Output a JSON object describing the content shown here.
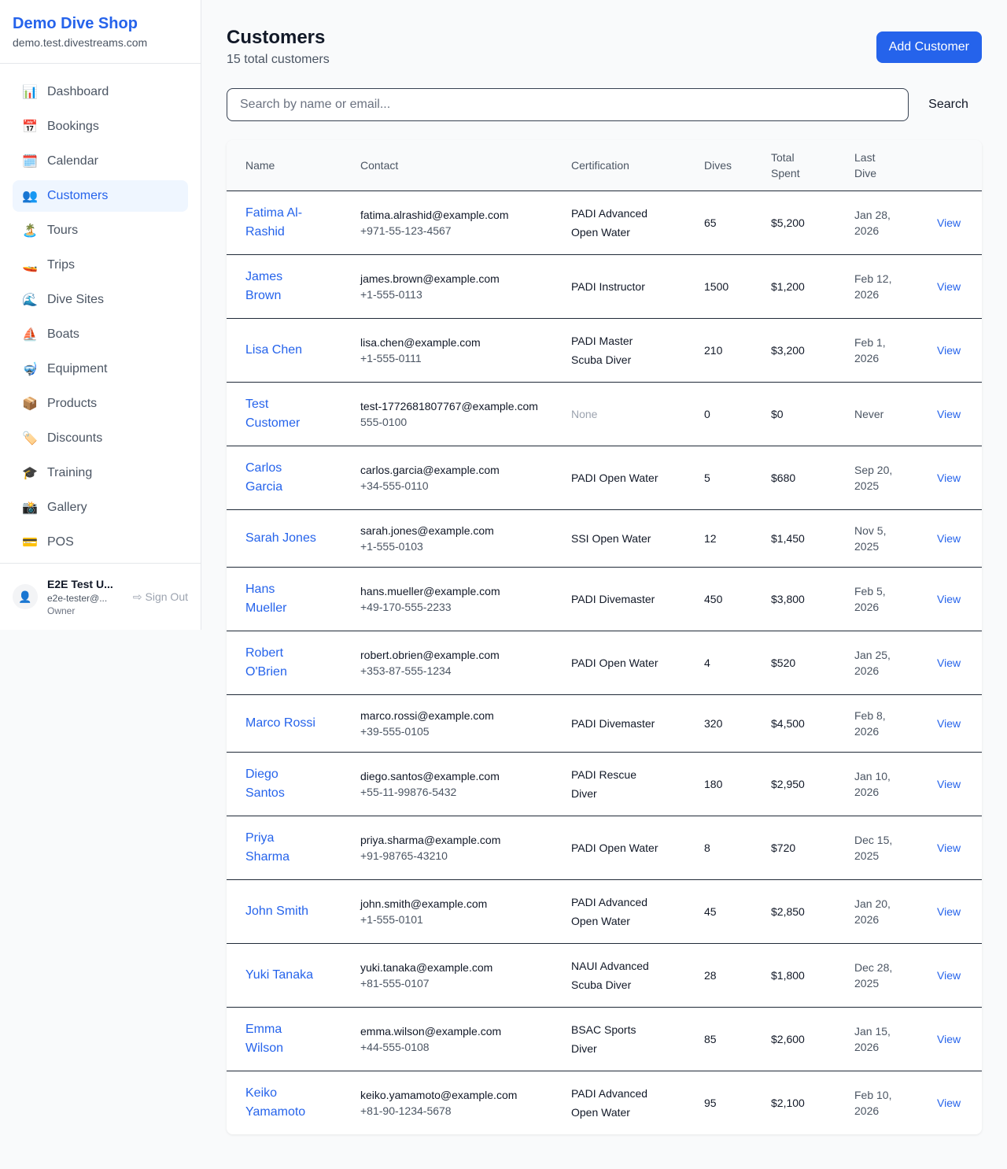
{
  "sidebar": {
    "brand": "Demo Dive Shop",
    "domain": "demo.test.divestreams.com",
    "items": [
      {
        "label": "Dashboard",
        "icon": "📊",
        "name": "dashboard"
      },
      {
        "label": "Bookings",
        "icon": "📅",
        "name": "bookings"
      },
      {
        "label": "Calendar",
        "icon": "🗓️",
        "name": "calendar"
      },
      {
        "label": "Customers",
        "icon": "👥",
        "name": "customers",
        "active": true
      },
      {
        "label": "Tours",
        "icon": "🏝️",
        "name": "tours"
      },
      {
        "label": "Trips",
        "icon": "🚤",
        "name": "trips"
      },
      {
        "label": "Dive Sites",
        "icon": "🌊",
        "name": "dive-sites"
      },
      {
        "label": "Boats",
        "icon": "⛵",
        "name": "boats"
      },
      {
        "label": "Equipment",
        "icon": "🤿",
        "name": "equipment"
      },
      {
        "label": "Products",
        "icon": "📦",
        "name": "products"
      },
      {
        "label": "Discounts",
        "icon": "🏷️",
        "name": "discounts"
      },
      {
        "label": "Training",
        "icon": "🎓",
        "name": "training"
      },
      {
        "label": "Gallery",
        "icon": "📸",
        "name": "gallery"
      },
      {
        "label": "POS",
        "icon": "💳",
        "name": "pos"
      }
    ],
    "user": {
      "name": "E2E Test U...",
      "email": "e2e-tester@...",
      "role": "Owner",
      "sign_out": "Sign Out"
    }
  },
  "header": {
    "title": "Customers",
    "subtitle": "15 total customers",
    "add_label": "Add Customer"
  },
  "search": {
    "placeholder": "Search by name or email...",
    "button": "Search"
  },
  "table": {
    "columns": [
      "Name",
      "Contact",
      "Certification",
      "Dives",
      "Total Spent",
      "Last Dive",
      ""
    ],
    "view_label": "View",
    "rows": [
      {
        "name": "Fatima Al-Rashid",
        "email": "fatima.alrashid@example.com",
        "phone": "+971-55-123-4567",
        "cert": "PADI Advanced Open Water",
        "dives": "65",
        "spent": "$5,200",
        "last": "Jan 28, 2026"
      },
      {
        "name": "James Brown",
        "email": "james.brown@example.com",
        "phone": "+1-555-0113",
        "cert": "PADI Instructor",
        "dives": "1500",
        "spent": "$1,200",
        "last": "Feb 12, 2026"
      },
      {
        "name": "Lisa Chen",
        "email": "lisa.chen@example.com",
        "phone": "+1-555-0111",
        "cert": "PADI Master Scuba Diver",
        "dives": "210",
        "spent": "$3,200",
        "last": "Feb 1, 2026"
      },
      {
        "name": "Test Customer",
        "email": "test-1772681807767@example.com",
        "phone": "555-0100",
        "cert": "None",
        "dives": "0",
        "spent": "$0",
        "last": "Never"
      },
      {
        "name": "Carlos Garcia",
        "email": "carlos.garcia@example.com",
        "phone": "+34-555-0110",
        "cert": "PADI Open Water",
        "dives": "5",
        "spent": "$680",
        "last": "Sep 20, 2025"
      },
      {
        "name": "Sarah Jones",
        "email": "sarah.jones@example.com",
        "phone": "+1-555-0103",
        "cert": "SSI Open Water",
        "dives": "12",
        "spent": "$1,450",
        "last": "Nov 5, 2025"
      },
      {
        "name": "Hans Mueller",
        "email": "hans.mueller@example.com",
        "phone": "+49-170-555-2233",
        "cert": "PADI Divemaster",
        "dives": "450",
        "spent": "$3,800",
        "last": "Feb 5, 2026"
      },
      {
        "name": "Robert O'Brien",
        "email": "robert.obrien@example.com",
        "phone": "+353-87-555-1234",
        "cert": "PADI Open Water",
        "dives": "4",
        "spent": "$520",
        "last": "Jan 25, 2026"
      },
      {
        "name": "Marco Rossi",
        "email": "marco.rossi@example.com",
        "phone": "+39-555-0105",
        "cert": "PADI Divemaster",
        "dives": "320",
        "spent": "$4,500",
        "last": "Feb 8, 2026"
      },
      {
        "name": "Diego Santos",
        "email": "diego.santos@example.com",
        "phone": "+55-11-99876-5432",
        "cert": "PADI Rescue Diver",
        "dives": "180",
        "spent": "$2,950",
        "last": "Jan 10, 2026"
      },
      {
        "name": "Priya Sharma",
        "email": "priya.sharma@example.com",
        "phone": "+91-98765-43210",
        "cert": "PADI Open Water",
        "dives": "8",
        "spent": "$720",
        "last": "Dec 15, 2025"
      },
      {
        "name": "John Smith",
        "email": "john.smith@example.com",
        "phone": "+1-555-0101",
        "cert": "PADI Advanced Open Water",
        "dives": "45",
        "spent": "$2,850",
        "last": "Jan 20, 2026"
      },
      {
        "name": "Yuki Tanaka",
        "email": "yuki.tanaka@example.com",
        "phone": "+81-555-0107",
        "cert": "NAUI Advanced Scuba Diver",
        "dives": "28",
        "spent": "$1,800",
        "last": "Dec 28, 2025"
      },
      {
        "name": "Emma Wilson",
        "email": "emma.wilson@example.com",
        "phone": "+44-555-0108",
        "cert": "BSAC Sports Diver",
        "dives": "85",
        "spent": "$2,600",
        "last": "Jan 15, 2026"
      },
      {
        "name": "Keiko Yamamoto",
        "email": "keiko.yamamoto@example.com",
        "phone": "+81-90-1234-5678",
        "cert": "PADI Advanced Open Water",
        "dives": "95",
        "spent": "$2,100",
        "last": "Feb 10, 2026"
      }
    ]
  }
}
